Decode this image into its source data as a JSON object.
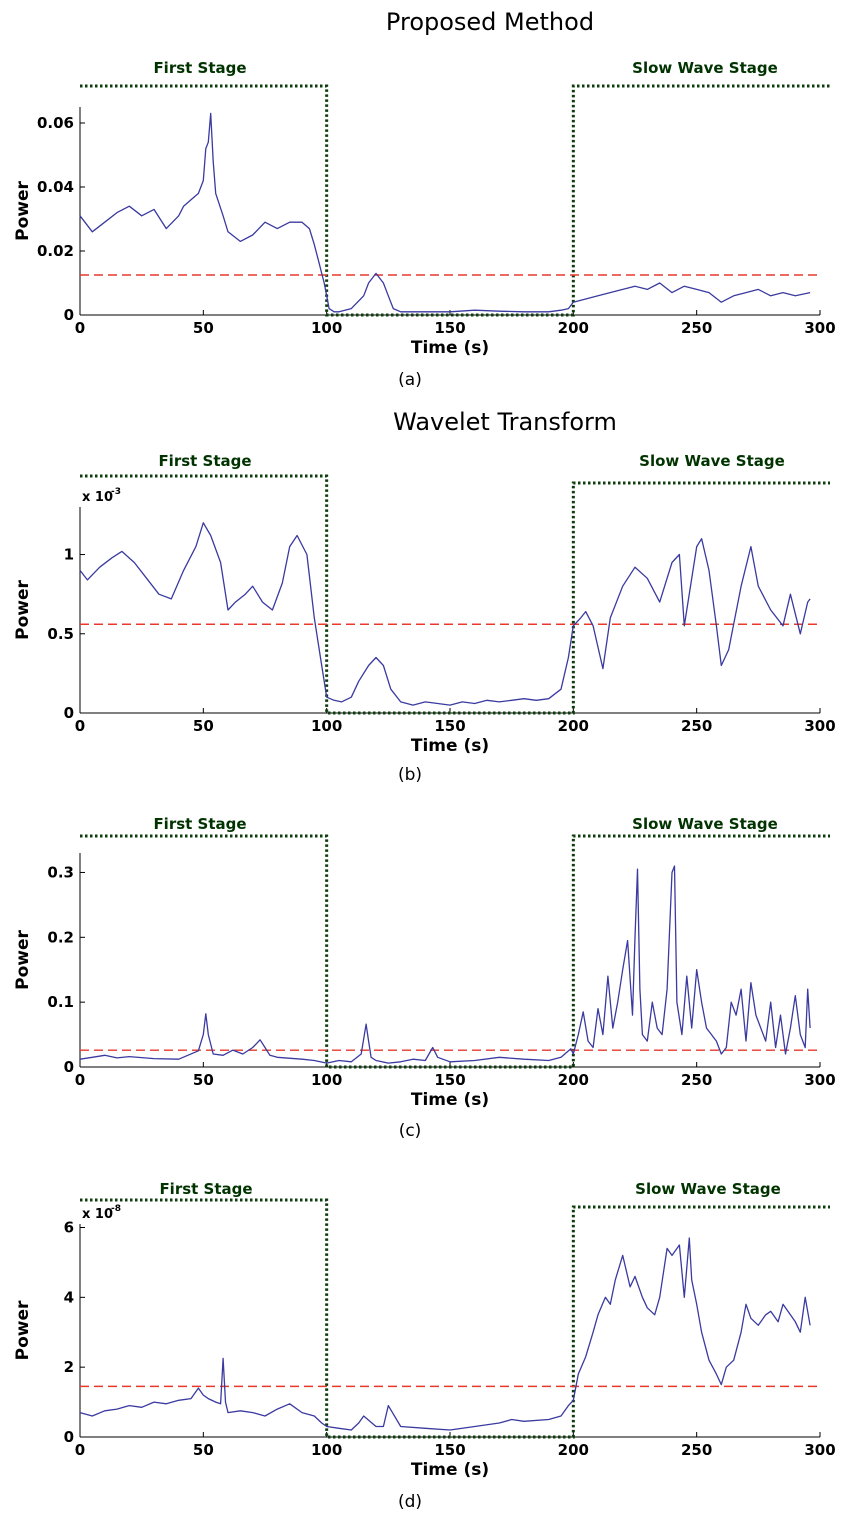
{
  "titles": [
    "Proposed Method",
    "Wavelet Transform"
  ],
  "colors": {
    "signal": "#3a3aa0",
    "threshold": "#e8392b",
    "stage": "#0d3d0d"
  },
  "chart_data": [
    {
      "type": "line",
      "panel_label": "(a)",
      "xlabel": "Time (s)",
      "ylabel": "Power",
      "xlim": [
        0,
        300
      ],
      "ylim": [
        0,
        0.065
      ],
      "xticks": [
        "0",
        "50",
        "100",
        "150",
        "200",
        "250",
        "300"
      ],
      "xtick_values": [
        0,
        50,
        100,
        150,
        200,
        250,
        300
      ],
      "yticks": [
        "0",
        "0.02",
        "0.04",
        "0.06"
      ],
      "ytick_values": [
        0,
        0.02,
        0.04,
        0.06
      ],
      "exponent": "",
      "threshold": 0.0125,
      "stage_labels": [
        "First Stage",
        "Slow Wave Stage"
      ],
      "stage_boundaries": [
        100,
        200
      ],
      "series": [
        {
          "x": [
            0,
            5,
            10,
            15,
            20,
            25,
            30,
            35,
            40,
            42,
            45,
            48,
            50,
            51,
            52,
            53,
            54,
            55,
            58,
            60,
            65,
            70,
            75,
            80,
            85,
            90,
            93,
            95,
            97,
            98,
            99,
            100,
            101,
            103,
            105,
            110,
            115,
            117,
            120,
            123,
            125,
            127,
            130,
            140,
            150,
            160,
            170,
            180,
            190,
            195,
            198,
            200,
            205,
            210,
            220,
            225,
            230,
            235,
            240,
            245,
            250,
            255,
            260,
            265,
            270,
            275,
            280,
            285,
            290,
            296
          ],
          "y": [
            0.031,
            0.026,
            0.029,
            0.032,
            0.034,
            0.031,
            0.033,
            0.027,
            0.031,
            0.034,
            0.036,
            0.038,
            0.042,
            0.052,
            0.054,
            0.063,
            0.048,
            0.038,
            0.031,
            0.026,
            0.023,
            0.025,
            0.029,
            0.027,
            0.029,
            0.029,
            0.027,
            0.022,
            0.016,
            0.013,
            0.01,
            0.006,
            0.002,
            0.001,
            0.001,
            0.002,
            0.006,
            0.01,
            0.013,
            0.01,
            0.006,
            0.002,
            0.001,
            0.001,
            0.001,
            0.0015,
            0.0012,
            0.001,
            0.001,
            0.0015,
            0.002,
            0.004,
            0.005,
            0.006,
            0.008,
            0.009,
            0.008,
            0.01,
            0.007,
            0.009,
            0.008,
            0.007,
            0.004,
            0.006,
            0.007,
            0.008,
            0.006,
            0.007,
            0.006,
            0.007
          ]
        }
      ]
    },
    {
      "type": "line",
      "panel_label": "(b)",
      "xlabel": "Time (s)",
      "ylabel": "Power",
      "xlim": [
        0,
        300
      ],
      "ylim": [
        0,
        1.3
      ],
      "xticks": [
        "0",
        "50",
        "100",
        "150",
        "200",
        "250",
        "300"
      ],
      "xtick_values": [
        0,
        50,
        100,
        150,
        200,
        250,
        300
      ],
      "yticks": [
        "0",
        "0.5",
        "1"
      ],
      "ytick_values": [
        0,
        0.5,
        1
      ],
      "exponent": "x 10",
      "exponent_power": "-3",
      "threshold": 0.56,
      "stage_labels": [
        "First Stage",
        "Slow Wave Stage"
      ],
      "stage_boundaries": [
        100,
        200
      ],
      "series": [
        {
          "x": [
            0,
            3,
            8,
            13,
            17,
            22,
            27,
            32,
            37,
            42,
            47,
            50,
            53,
            57,
            60,
            63,
            67,
            70,
            74,
            78,
            82,
            85,
            88,
            92,
            95,
            98,
            100,
            103,
            106,
            110,
            113,
            117,
            120,
            123,
            126,
            130,
            135,
            140,
            145,
            150,
            155,
            160,
            165,
            170,
            175,
            180,
            185,
            190,
            195,
            198,
            200,
            203,
            205,
            208,
            212,
            215,
            220,
            225,
            230,
            235,
            240,
            243,
            245,
            250,
            252,
            255,
            258,
            260,
            263,
            268,
            272,
            275,
            280,
            285,
            288,
            292,
            295,
            296
          ],
          "y": [
            0.9,
            0.84,
            0.92,
            0.98,
            1.02,
            0.95,
            0.85,
            0.75,
            0.72,
            0.9,
            1.05,
            1.2,
            1.12,
            0.95,
            0.65,
            0.7,
            0.75,
            0.8,
            0.7,
            0.65,
            0.82,
            1.05,
            1.12,
            1.0,
            0.6,
            0.3,
            0.1,
            0.08,
            0.07,
            0.1,
            0.2,
            0.3,
            0.35,
            0.3,
            0.15,
            0.07,
            0.05,
            0.07,
            0.06,
            0.05,
            0.07,
            0.06,
            0.08,
            0.07,
            0.08,
            0.09,
            0.08,
            0.09,
            0.15,
            0.35,
            0.55,
            0.6,
            0.64,
            0.55,
            0.28,
            0.6,
            0.8,
            0.92,
            0.85,
            0.7,
            0.95,
            1.0,
            0.55,
            1.05,
            1.1,
            0.9,
            0.55,
            0.3,
            0.4,
            0.8,
            1.05,
            0.8,
            0.65,
            0.55,
            0.75,
            0.5,
            0.7,
            0.72
          ]
        }
      ]
    },
    {
      "type": "line",
      "panel_label": "(c)",
      "xlabel": "Time (s)",
      "ylabel": "Power",
      "xlim": [
        0,
        300
      ],
      "ylim": [
        0,
        0.33
      ],
      "xticks": [
        "0",
        "50",
        "100",
        "150",
        "200",
        "250",
        "300"
      ],
      "xtick_values": [
        0,
        50,
        100,
        150,
        200,
        250,
        300
      ],
      "yticks": [
        "0",
        "0.1",
        "0.2",
        "0.3"
      ],
      "ytick_values": [
        0,
        0.1,
        0.2,
        0.3
      ],
      "exponent": "",
      "threshold": 0.026,
      "stage_labels": [
        "First Stage",
        "Slow Wave Stage"
      ],
      "stage_boundaries": [
        100,
        200
      ],
      "series": [
        {
          "x": [
            0,
            5,
            10,
            15,
            20,
            30,
            40,
            48,
            50,
            51,
            52,
            54,
            58,
            62,
            66,
            70,
            73,
            75,
            77,
            80,
            90,
            95,
            100,
            105,
            110,
            114,
            116,
            117,
            118,
            120,
            125,
            130,
            135,
            140,
            143,
            145,
            150,
            160,
            170,
            180,
            190,
            195,
            199,
            200,
            202,
            204,
            206,
            208,
            210,
            212,
            214,
            216,
            218,
            220,
            222,
            224,
            225,
            226,
            227,
            228,
            230,
            232,
            234,
            236,
            238,
            240,
            241,
            242,
            244,
            246,
            248,
            250,
            252,
            254,
            256,
            258,
            260,
            262,
            264,
            266,
            268,
            270,
            272,
            274,
            276,
            278,
            280,
            282,
            284,
            286,
            288,
            290,
            292,
            294,
            295,
            296
          ],
          "y": [
            0.012,
            0.015,
            0.018,
            0.014,
            0.016,
            0.013,
            0.012,
            0.025,
            0.05,
            0.082,
            0.05,
            0.02,
            0.018,
            0.026,
            0.02,
            0.03,
            0.042,
            0.03,
            0.018,
            0.015,
            0.012,
            0.01,
            0.006,
            0.01,
            0.008,
            0.02,
            0.066,
            0.04,
            0.015,
            0.01,
            0.006,
            0.008,
            0.012,
            0.01,
            0.03,
            0.015,
            0.008,
            0.01,
            0.015,
            0.012,
            0.01,
            0.015,
            0.028,
            0.02,
            0.05,
            0.085,
            0.04,
            0.03,
            0.09,
            0.05,
            0.14,
            0.06,
            0.1,
            0.15,
            0.195,
            0.08,
            0.2,
            0.305,
            0.12,
            0.05,
            0.04,
            0.1,
            0.06,
            0.05,
            0.12,
            0.3,
            0.31,
            0.1,
            0.05,
            0.14,
            0.06,
            0.15,
            0.1,
            0.06,
            0.05,
            0.04,
            0.02,
            0.03,
            0.1,
            0.08,
            0.12,
            0.04,
            0.13,
            0.08,
            0.06,
            0.04,
            0.1,
            0.03,
            0.08,
            0.02,
            0.06,
            0.11,
            0.05,
            0.03,
            0.12,
            0.06
          ]
        }
      ]
    },
    {
      "type": "line",
      "panel_label": "(d)",
      "xlabel": "Time (s)",
      "ylabel": "Power",
      "xlim": [
        0,
        300
      ],
      "ylim": [
        0,
        6.1
      ],
      "xticks": [
        "0",
        "50",
        "100",
        "150",
        "200",
        "250",
        "300"
      ],
      "xtick_values": [
        0,
        50,
        100,
        150,
        200,
        250,
        300
      ],
      "yticks": [
        "0",
        "2",
        "4",
        "6"
      ],
      "ytick_values": [
        0,
        2,
        4,
        6
      ],
      "exponent": "x 10",
      "exponent_power": "-8",
      "threshold": 1.45,
      "stage_labels": [
        "First Stage",
        "Slow Wave Stage"
      ],
      "stage_boundaries": [
        100,
        200
      ],
      "series": [
        {
          "x": [
            0,
            5,
            10,
            15,
            20,
            25,
            30,
            35,
            40,
            45,
            48,
            50,
            52,
            55,
            57,
            58,
            59,
            60,
            65,
            70,
            75,
            80,
            85,
            90,
            95,
            98,
            100,
            105,
            110,
            113,
            115,
            120,
            123,
            125,
            130,
            140,
            150,
            160,
            170,
            175,
            180,
            190,
            195,
            198,
            200,
            202,
            205,
            208,
            210,
            213,
            215,
            217,
            220,
            223,
            225,
            228,
            230,
            233,
            235,
            238,
            240,
            243,
            245,
            247,
            248,
            250,
            252,
            255,
            258,
            260,
            262,
            265,
            268,
            270,
            272,
            275,
            278,
            280,
            283,
            285,
            288,
            290,
            292,
            294,
            296
          ],
          "y": [
            0.7,
            0.6,
            0.75,
            0.8,
            0.9,
            0.85,
            1.0,
            0.95,
            1.05,
            1.1,
            1.4,
            1.2,
            1.1,
            1.0,
            0.95,
            2.25,
            1.0,
            0.7,
            0.75,
            0.7,
            0.6,
            0.8,
            0.95,
            0.7,
            0.6,
            0.4,
            0.3,
            0.25,
            0.2,
            0.4,
            0.6,
            0.3,
            0.3,
            0.9,
            0.3,
            0.25,
            0.2,
            0.3,
            0.4,
            0.5,
            0.45,
            0.5,
            0.6,
            0.9,
            1.05,
            1.8,
            2.3,
            3.0,
            3.5,
            4.0,
            3.8,
            4.5,
            5.2,
            4.3,
            4.6,
            4.0,
            3.7,
            3.5,
            4.0,
            5.4,
            5.2,
            5.5,
            4.0,
            5.7,
            4.5,
            3.8,
            3.0,
            2.2,
            1.8,
            1.5,
            2.0,
            2.2,
            3.0,
            3.8,
            3.4,
            3.2,
            3.5,
            3.6,
            3.3,
            3.8,
            3.5,
            3.3,
            3.0,
            4.0,
            3.2
          ]
        }
      ]
    }
  ]
}
